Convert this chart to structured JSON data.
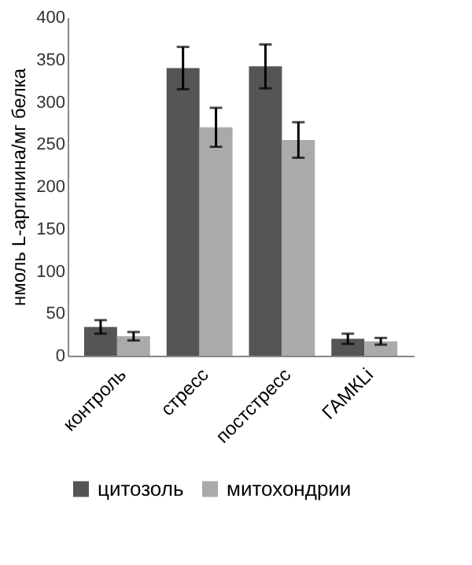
{
  "chart_data": {
    "type": "bar",
    "ylabel": "нмоль L-аргинина/мг белка",
    "categories": [
      "контроль",
      "стресс",
      "постстресс",
      "ГАМКLi"
    ],
    "series": [
      {
        "name": "цитозоль",
        "color": "#555555",
        "values": [
          34,
          340,
          342,
          20
        ],
        "errors": [
          8,
          25,
          26,
          6
        ]
      },
      {
        "name": "митохондрии",
        "color": "#aaaaaa",
        "values": [
          23,
          270,
          255,
          17
        ],
        "errors": [
          5,
          23,
          21,
          4
        ]
      }
    ],
    "ylim": [
      0,
      400
    ],
    "yticks": [
      0,
      50,
      100,
      150,
      200,
      250,
      300,
      350,
      400
    ],
    "grid": false,
    "legend": "bottom"
  }
}
